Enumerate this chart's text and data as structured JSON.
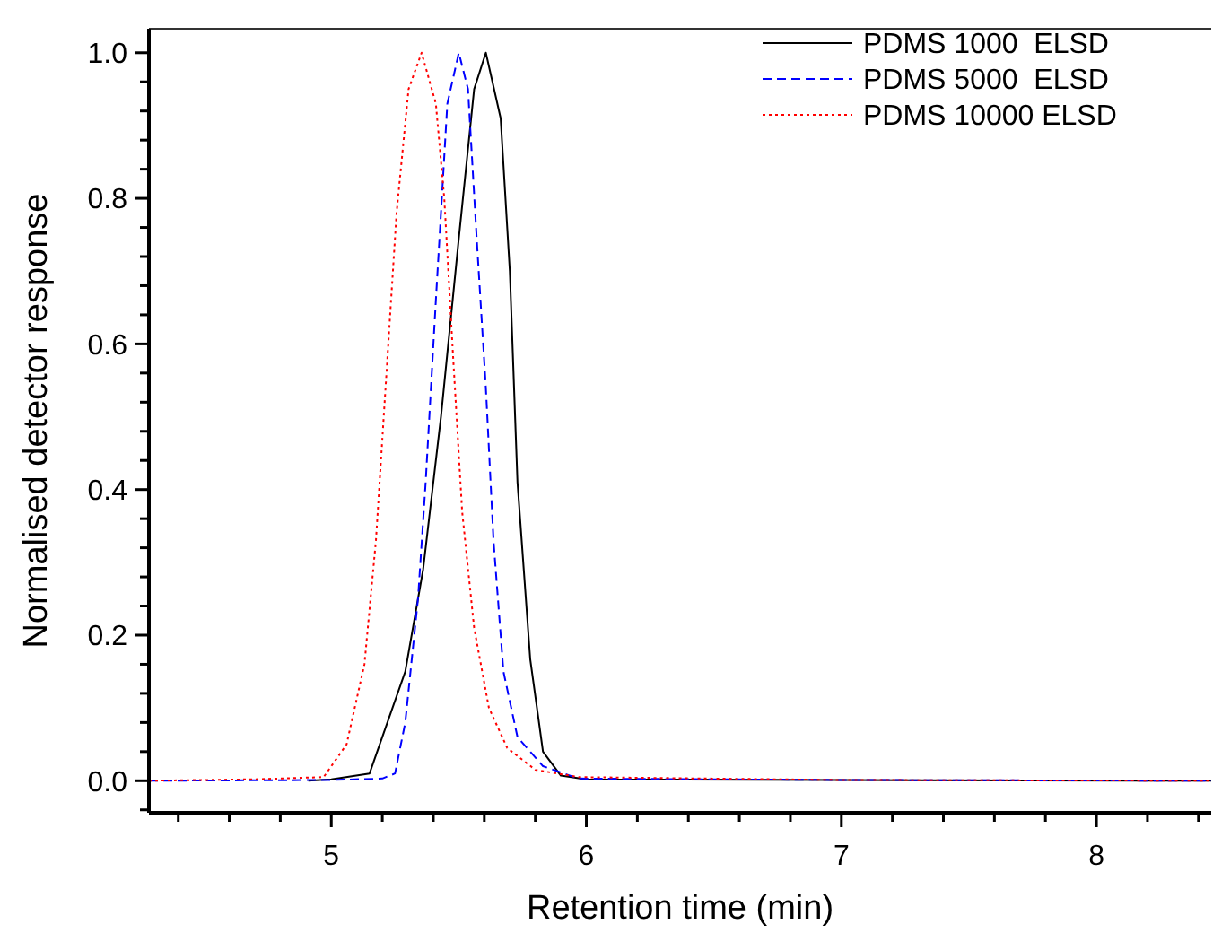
{
  "chart_data": {
    "type": "line",
    "xlabel": "Retention time (min)",
    "ylabel": "Normalised detector response",
    "xlim": [
      4.285,
      8.45
    ],
    "ylim": [
      -0.044,
      1.033
    ],
    "xticks": [
      {
        "value": 4.4,
        "label": null
      },
      {
        "value": 4.6,
        "label": null
      },
      {
        "value": 4.8,
        "label": null
      },
      5,
      {
        "value": 5.2,
        "label": null
      },
      {
        "value": 5.4,
        "label": null
      },
      {
        "value": 5.6,
        "label": null
      },
      {
        "value": 5.8,
        "label": null
      },
      6,
      {
        "value": 6.2,
        "label": null
      },
      {
        "value": 6.4,
        "label": null
      },
      {
        "value": 6.6,
        "label": null
      },
      {
        "value": 6.8,
        "label": null
      },
      7,
      {
        "value": 7.2,
        "label": null
      },
      {
        "value": 7.4,
        "label": null
      },
      {
        "value": 7.6,
        "label": null
      },
      {
        "value": 7.8,
        "label": null
      },
      8,
      {
        "value": 8.2,
        "label": null
      },
      {
        "value": 8.4,
        "label": null
      }
    ],
    "yticks": [
      {
        "value": -0.04,
        "label": null
      },
      {
        "value": 0,
        "label": "0.0"
      },
      {
        "value": 0.04,
        "label": null
      },
      {
        "value": 0.08,
        "label": null
      },
      {
        "value": 0.12,
        "label": null
      },
      {
        "value": 0.16,
        "label": null
      },
      {
        "value": 0.2,
        "label": "0.2"
      },
      {
        "value": 0.24,
        "label": null
      },
      {
        "value": 0.28,
        "label": null
      },
      {
        "value": 0.32,
        "label": null
      },
      {
        "value": 0.36,
        "label": null
      },
      {
        "value": 0.4,
        "label": "0.4"
      },
      {
        "value": 0.44,
        "label": null
      },
      {
        "value": 0.48,
        "label": null
      },
      {
        "value": 0.52,
        "label": null
      },
      {
        "value": 0.56,
        "label": null
      },
      {
        "value": 0.6,
        "label": "0.6"
      },
      {
        "value": 0.64,
        "label": null
      },
      {
        "value": 0.68,
        "label": null
      },
      {
        "value": 0.72,
        "label": null
      },
      {
        "value": 0.76,
        "label": null
      },
      {
        "value": 0.8,
        "label": "0.8"
      },
      {
        "value": 0.84,
        "label": null
      },
      {
        "value": 0.88,
        "label": null
      },
      {
        "value": 0.92,
        "label": null
      },
      {
        "value": 0.96,
        "label": null
      },
      {
        "value": 1.0,
        "label": "1.0"
      }
    ],
    "grid": false,
    "legend": "top right",
    "marker": "none",
    "series": [
      {
        "name": "PDMS 1000  ELSD",
        "color": "#000000",
        "line_style": "solid",
        "x": [
          4.91,
          5.0,
          5.15,
          5.29,
          5.36,
          5.43,
          5.5,
          5.56,
          5.606,
          5.664,
          5.7,
          5.73,
          5.78,
          5.83,
          5.9,
          6.0,
          7.0,
          8.45
        ],
        "values": [
          0,
          0.002,
          0.01,
          0.15,
          0.29,
          0.5,
          0.745,
          0.95,
          1.0,
          0.91,
          0.7,
          0.41,
          0.167,
          0.04,
          0.007,
          0.002,
          0.001,
          0
        ]
      },
      {
        "name": "PDMS 5000  ELSD",
        "color": "#0000ff",
        "line_style": "dashed",
        "x": [
          4.285,
          5.0,
          5.2,
          5.25,
          5.29,
          5.34,
          5.37,
          5.41,
          5.43,
          5.455,
          5.5,
          5.536,
          5.57,
          5.606,
          5.636,
          5.675,
          5.73,
          5.83,
          5.97,
          7.0,
          8.45
        ],
        "values": [
          0,
          0.001,
          0.003,
          0.01,
          0.08,
          0.25,
          0.41,
          0.66,
          0.78,
          0.93,
          1.0,
          0.95,
          0.745,
          0.54,
          0.33,
          0.15,
          0.06,
          0.02,
          0.003,
          0.001,
          0
        ]
      },
      {
        "name": "PDMS 10000 ELSD",
        "color": "#ff0000",
        "line_style": "dotted",
        "x": [
          4.285,
          4.7,
          4.97,
          5.06,
          5.13,
          5.175,
          5.22,
          5.256,
          5.303,
          5.354,
          5.41,
          5.443,
          5.478,
          5.513,
          5.56,
          5.618,
          5.69,
          5.8,
          5.97,
          7.0,
          8.45
        ],
        "values": [
          0,
          0.002,
          0.005,
          0.05,
          0.16,
          0.33,
          0.58,
          0.78,
          0.95,
          1.0,
          0.93,
          0.8,
          0.58,
          0.37,
          0.21,
          0.1,
          0.045,
          0.015,
          0.005,
          0.001,
          0
        ]
      }
    ]
  }
}
